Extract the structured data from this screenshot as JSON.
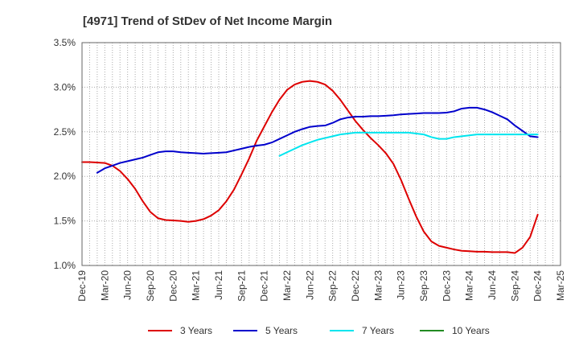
{
  "chart_data": {
    "type": "line",
    "title": "[4971]  Trend of StDev of Net Income Margin",
    "xlabel": "",
    "ylabel": "",
    "x_tick_labels": [
      "Dec-19",
      "Mar-20",
      "Jun-20",
      "Sep-20",
      "Dec-20",
      "Mar-21",
      "Jun-21",
      "Sep-21",
      "Dec-21",
      "Mar-22",
      "Jun-22",
      "Sep-22",
      "Dec-22",
      "Mar-23",
      "Jun-23",
      "Sep-23",
      "Dec-23",
      "Mar-24",
      "Jun-24",
      "Sep-24",
      "Dec-24",
      "Mar-25"
    ],
    "y_ticks": [
      1.0,
      1.5,
      2.0,
      2.5,
      3.0,
      3.5
    ],
    "y_tick_labels": [
      "1.0%",
      "1.5%",
      "2.0%",
      "2.5%",
      "3.0%",
      "3.5%"
    ],
    "ylim": [
      1.0,
      3.5
    ],
    "x_range": [
      0,
      63
    ],
    "grid": true,
    "legend_position": "bottom",
    "series": [
      {
        "name": "3 Years",
        "color": "#dd0000",
        "x": [
          0,
          1,
          2,
          3,
          4,
          5,
          6,
          7,
          8,
          9,
          10,
          11,
          12,
          13,
          14,
          15,
          16,
          17,
          18,
          19,
          20,
          21,
          22,
          23,
          24,
          25,
          26,
          27,
          28,
          29,
          30,
          31,
          32,
          33,
          34,
          35,
          36,
          37,
          38,
          39,
          40,
          41,
          42,
          43,
          44,
          45,
          46,
          47,
          48,
          49,
          50,
          51,
          52,
          53,
          54,
          55,
          56,
          57,
          58,
          59,
          60
        ],
        "values": [
          2.16,
          2.16,
          2.155,
          2.15,
          2.12,
          2.06,
          1.97,
          1.86,
          1.72,
          1.6,
          1.53,
          1.51,
          1.505,
          1.5,
          1.49,
          1.5,
          1.52,
          1.56,
          1.62,
          1.72,
          1.85,
          2.02,
          2.2,
          2.4,
          2.56,
          2.72,
          2.86,
          2.97,
          3.03,
          3.06,
          3.07,
          3.06,
          3.03,
          2.96,
          2.86,
          2.74,
          2.62,
          2.52,
          2.43,
          2.35,
          2.26,
          2.14,
          1.96,
          1.75,
          1.55,
          1.38,
          1.27,
          1.22,
          1.2,
          1.18,
          1.165,
          1.16,
          1.155,
          1.155,
          1.15,
          1.15,
          1.15,
          1.14,
          1.2,
          1.32,
          1.57
        ]
      },
      {
        "name": "5 Years",
        "color": "#0000cc",
        "x": [
          2,
          3,
          4,
          5,
          6,
          7,
          8,
          9,
          10,
          11,
          12,
          13,
          14,
          15,
          16,
          17,
          18,
          19,
          20,
          21,
          22,
          23,
          24,
          25,
          26,
          27,
          28,
          29,
          30,
          31,
          32,
          33,
          34,
          35,
          36,
          37,
          38,
          39,
          40,
          41,
          42,
          43,
          44,
          45,
          46,
          47,
          48,
          49,
          50,
          51,
          52,
          53,
          54,
          55,
          56,
          57,
          58,
          59,
          60
        ],
        "values": [
          2.04,
          2.09,
          2.12,
          2.15,
          2.17,
          2.19,
          2.21,
          2.24,
          2.27,
          2.28,
          2.28,
          2.27,
          2.265,
          2.26,
          2.255,
          2.26,
          2.265,
          2.27,
          2.29,
          2.31,
          2.33,
          2.345,
          2.355,
          2.38,
          2.42,
          2.46,
          2.5,
          2.53,
          2.555,
          2.565,
          2.57,
          2.6,
          2.64,
          2.66,
          2.67,
          2.67,
          2.675,
          2.675,
          2.68,
          2.685,
          2.695,
          2.7,
          2.705,
          2.71,
          2.71,
          2.71,
          2.715,
          2.73,
          2.76,
          2.77,
          2.77,
          2.75,
          2.72,
          2.68,
          2.64,
          2.57,
          2.51,
          2.45,
          2.44
        ]
      },
      {
        "name": "7 Years",
        "color": "#00e5ee",
        "x": [
          26,
          27,
          28,
          29,
          30,
          31,
          32,
          33,
          34,
          35,
          36,
          37,
          38,
          39,
          40,
          41,
          42,
          43,
          44,
          45,
          46,
          47,
          48,
          49,
          50,
          51,
          52,
          53,
          54,
          55,
          56,
          57,
          58,
          59,
          60
        ],
        "values": [
          2.23,
          2.27,
          2.31,
          2.35,
          2.38,
          2.41,
          2.43,
          2.45,
          2.47,
          2.48,
          2.49,
          2.49,
          2.49,
          2.49,
          2.49,
          2.49,
          2.49,
          2.49,
          2.48,
          2.47,
          2.44,
          2.42,
          2.42,
          2.44,
          2.45,
          2.46,
          2.47,
          2.47,
          2.47,
          2.47,
          2.47,
          2.47,
          2.47,
          2.47,
          2.47
        ]
      },
      {
        "name": "10 Years",
        "color": "#228b22",
        "x": [],
        "values": []
      }
    ]
  }
}
